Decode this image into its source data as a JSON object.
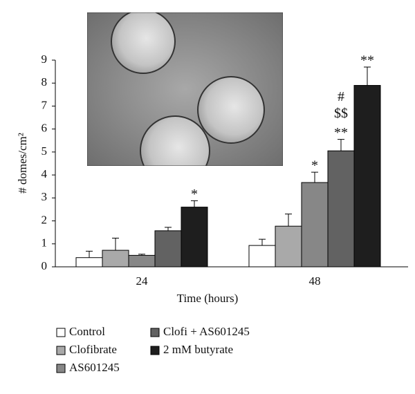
{
  "chart_data": {
    "type": "bar",
    "x_label": "Time (hours)",
    "y_label": "# domes/cm²",
    "categories": [
      "24",
      "48"
    ],
    "ylim": [
      0,
      9
    ],
    "yticks": [
      0,
      1,
      2,
      3,
      4,
      5,
      6,
      7,
      8,
      9
    ],
    "series": [
      {
        "name": "Control",
        "color": "#ffffff",
        "values": [
          0.4,
          0.93
        ],
        "errors": [
          0.28,
          0.27
        ]
      },
      {
        "name": "Clofibrate",
        "color": "#a9a9a9",
        "values": [
          0.72,
          1.77
        ],
        "errors": [
          0.53,
          0.53
        ]
      },
      {
        "name": "AS601245",
        "color": "#878787",
        "values": [
          0.5,
          3.67
        ],
        "errors": [
          0.05,
          0.45
        ],
        "annotations": [
          null,
          [
            "*"
          ]
        ]
      },
      {
        "name": "Clofi + AS601245",
        "color": "#626262",
        "values": [
          1.57,
          5.05
        ],
        "errors": [
          0.15,
          0.5
        ],
        "annotations": [
          null,
          [
            "#",
            "$$",
            "**"
          ]
        ]
      },
      {
        "name": "2 mM butyrate",
        "color": "#1e1e1e",
        "values": [
          2.6,
          7.9
        ],
        "errors": [
          0.28,
          0.8
        ],
        "annotations": [
          [
            "*"
          ],
          [
            "**"
          ]
        ]
      }
    ]
  }
}
